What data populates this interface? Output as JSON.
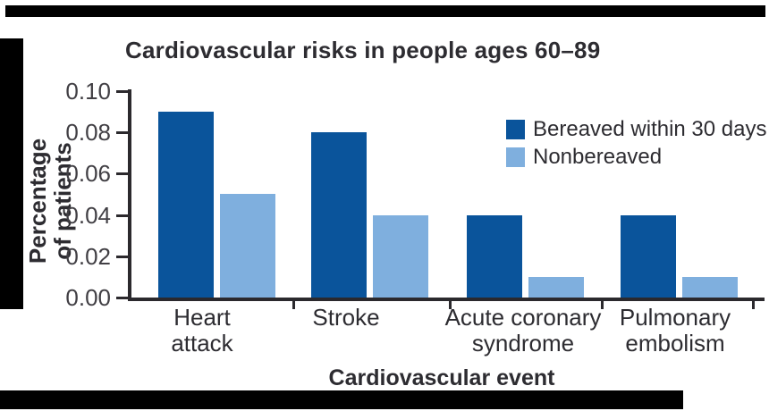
{
  "figure": {
    "background_color": "#ffffff",
    "decoration_color": "#000000"
  },
  "chart_data": {
    "type": "bar",
    "title": "Cardiovascular risks in people ages 60–89",
    "xlabel": "Cardiovascular event",
    "ylabel": "Percentage of patients",
    "ylabel_lines": "Percentage\nof patients",
    "categories": [
      "Heart attack",
      "Stroke",
      "Acute coronary syndrome",
      "Pulmonary embolism"
    ],
    "category_label_lines": [
      [
        "Heart",
        "attack"
      ],
      [
        "Stroke"
      ],
      [
        "Acute coronary",
        "syndrome"
      ],
      [
        "Pulmonary",
        "embolism"
      ]
    ],
    "series": [
      {
        "name": "Bereaved within 30 days",
        "color": "#0A549B",
        "values": [
          0.09,
          0.08,
          0.04,
          0.04
        ]
      },
      {
        "name": "Nonbereaved",
        "color": "#7FAFDE",
        "values": [
          0.05,
          0.04,
          0.01,
          0.01
        ]
      }
    ],
    "y_ticks": [
      "0.00",
      "0.02",
      "0.04",
      "0.06",
      "0.08",
      "0.10"
    ],
    "ylim": [
      0,
      0.1
    ],
    "grid": false,
    "legend_position": "upper right",
    "text_color": "#2D2C31",
    "tick_text_color": "#413F44",
    "axis_color": "#2B292D"
  }
}
